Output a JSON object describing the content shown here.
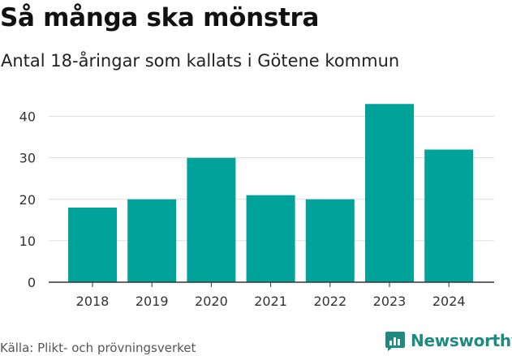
{
  "chart_data": {
    "type": "bar",
    "title": "Så många ska mönstra",
    "subtitle": "Antal 18-åringar som kallats i Götene kommun",
    "categories": [
      "2018",
      "2019",
      "2020",
      "2021",
      "2022",
      "2023",
      "2024"
    ],
    "values": [
      18,
      20,
      30,
      21,
      20,
      43,
      32
    ],
    "yticks": [
      0,
      10,
      20,
      30,
      40
    ],
    "ylim": [
      0,
      45
    ],
    "xlabel": "",
    "ylabel": "",
    "grid": true,
    "bar_color": "#00a39a",
    "grid_color": "#dddddd",
    "axis_color": "#333333"
  },
  "footer": {
    "source": "Källa: Plikt- och prövningsverket",
    "brand": "Newsworthy",
    "brand_color": "#1f8a80"
  }
}
